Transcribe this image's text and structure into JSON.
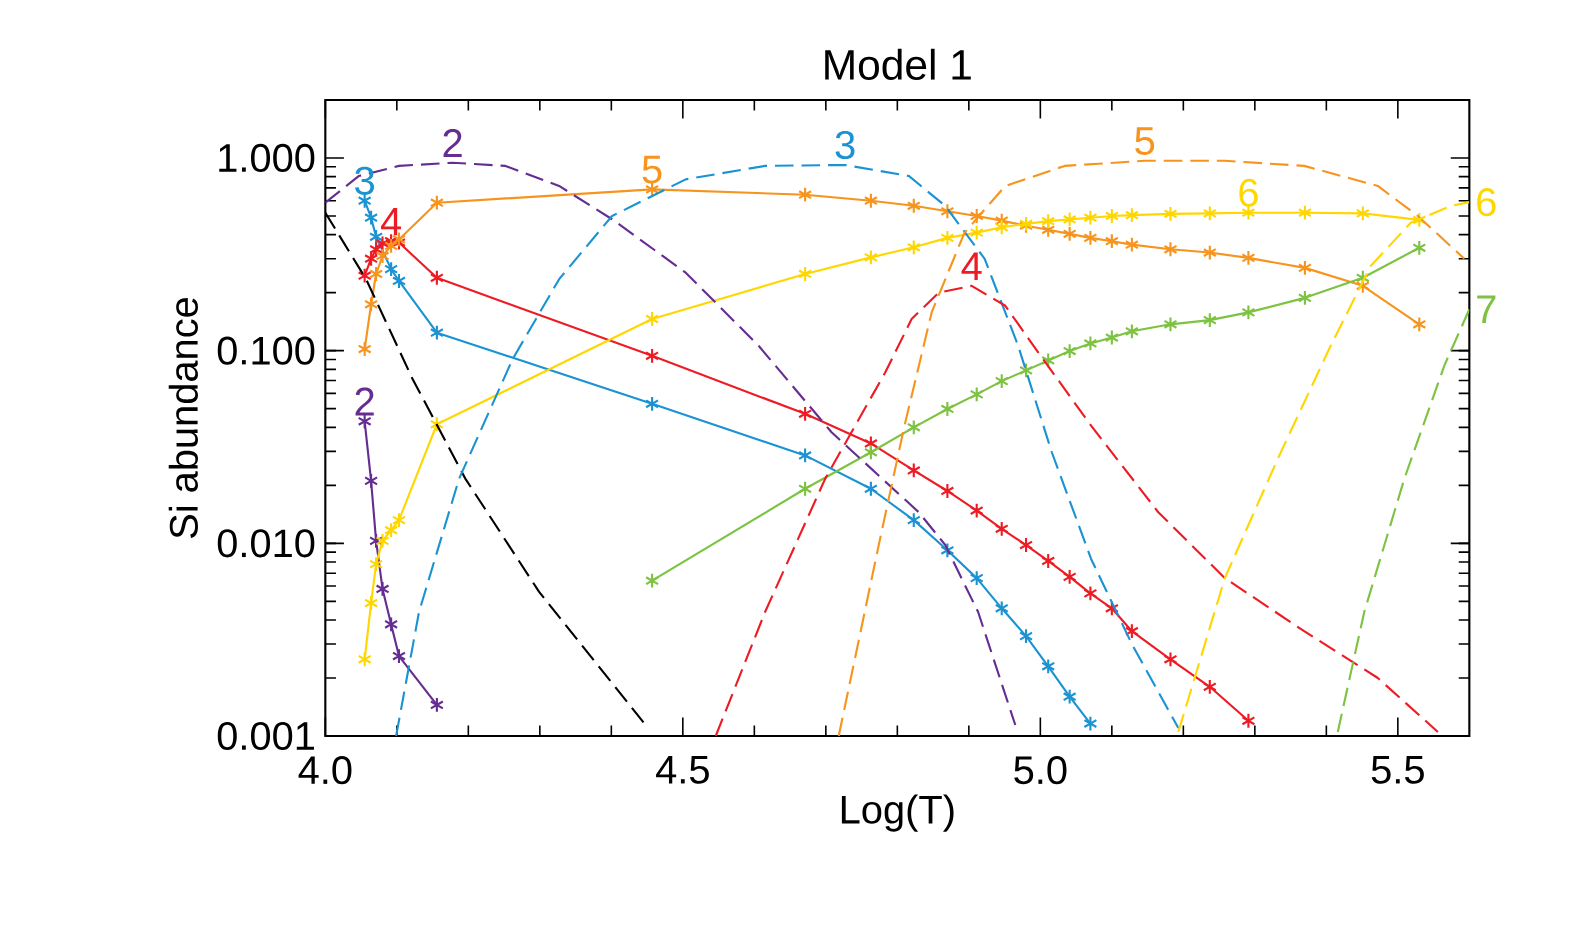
{
  "chart_data": {
    "type": "line",
    "title": "Model   1",
    "xlabel": "Log(T)",
    "ylabel": "Si abundance",
    "xlim": [
      4.0,
      5.6
    ],
    "ylim": [
      0.001,
      2
    ],
    "log": "y",
    "grid": false,
    "xticks": [
      {
        "value": 4.0,
        "label": "4.0"
      },
      {
        "value": 4.5,
        "label": "4.5"
      },
      {
        "value": 5.0,
        "label": "5.0"
      },
      {
        "value": 5.5,
        "label": "5.5"
      }
    ],
    "yticks": [
      {
        "value": 0.001,
        "label": "0.001"
      },
      {
        "value": 0.01,
        "label": "0.010"
      },
      {
        "value": 0.1,
        "label": "0.100"
      },
      {
        "value": 1,
        "label": "1.000"
      }
    ],
    "series": [
      {
        "name": "2",
        "color": "#662d91",
        "line_style": "solid",
        "marker": "cross",
        "x": [
          4.055,
          4.064,
          4.071,
          4.08,
          4.092,
          4.103,
          4.156
        ],
        "values": [
          0.043,
          0.0211,
          0.0103,
          0.0058,
          0.0038,
          0.0026,
          0.00145
        ]
      },
      {
        "name": "3",
        "color": "#1b93d3",
        "line_style": "solid",
        "marker": "cross",
        "x": [
          4.055,
          4.064,
          4.071,
          4.092,
          4.103,
          4.156,
          4.457,
          4.671,
          4.763,
          4.823,
          4.87,
          4.911,
          4.946,
          4.98,
          5.011,
          5.041,
          5.07
        ],
        "values": [
          0.6,
          0.49,
          0.39,
          0.265,
          0.23,
          0.124,
          0.053,
          0.0286,
          0.0192,
          0.0132,
          0.0092,
          0.0066,
          0.0046,
          0.0033,
          0.0023,
          0.0016,
          0.00116
        ]
      },
      {
        "name": "4",
        "color": "#ed1c24",
        "line_style": "solid",
        "marker": "cross",
        "x": [
          4.055,
          4.064,
          4.071,
          4.08,
          4.092,
          4.103,
          4.156,
          4.457,
          4.671,
          4.763,
          4.823,
          4.87,
          4.911,
          4.946,
          4.98,
          5.011,
          5.041,
          5.07,
          5.1,
          5.128,
          5.182,
          5.237,
          5.291
        ],
        "values": [
          0.245,
          0.3,
          0.336,
          0.36,
          0.37,
          0.364,
          0.239,
          0.094,
          0.047,
          0.033,
          0.0239,
          0.0187,
          0.0148,
          0.0119,
          0.0098,
          0.0081,
          0.0067,
          0.0055,
          0.0046,
          0.0035,
          0.0025,
          0.0018,
          0.0012
        ]
      },
      {
        "name": "5",
        "color": "#f7941d",
        "line_style": "solid",
        "marker": "cross",
        "x": [
          4.055,
          4.064,
          4.071,
          4.08,
          4.092,
          4.103,
          4.156,
          4.457,
          4.671,
          4.763,
          4.823,
          4.87,
          4.911,
          4.946,
          4.98,
          5.011,
          5.041,
          5.07,
          5.1,
          5.128,
          5.182,
          5.237,
          5.291,
          5.37,
          5.451,
          5.53
        ],
        "values": [
          0.102,
          0.174,
          0.25,
          0.31,
          0.35,
          0.378,
          0.586,
          0.687,
          0.645,
          0.6,
          0.565,
          0.529,
          0.5,
          0.473,
          0.445,
          0.424,
          0.404,
          0.385,
          0.37,
          0.355,
          0.336,
          0.323,
          0.303,
          0.269,
          0.217,
          0.137
        ]
      },
      {
        "name": "6",
        "color": "#ffd700",
        "line_style": "solid",
        "marker": "cross",
        "x": [
          4.055,
          4.064,
          4.071,
          4.08,
          4.092,
          4.103,
          4.156,
          4.457,
          4.671,
          4.763,
          4.823,
          4.87,
          4.911,
          4.946,
          4.98,
          5.011,
          5.041,
          5.07,
          5.1,
          5.128,
          5.182,
          5.237,
          5.291,
          5.37,
          5.451,
          5.53
        ],
        "values": [
          0.0025,
          0.0049,
          0.0078,
          0.0103,
          0.0117,
          0.0132,
          0.0415,
          0.146,
          0.25,
          0.305,
          0.344,
          0.385,
          0.41,
          0.437,
          0.455,
          0.47,
          0.48,
          0.49,
          0.5,
          0.505,
          0.513,
          0.516,
          0.52,
          0.52,
          0.516,
          0.477
        ]
      },
      {
        "color": "#7dc241",
        "line_style": "solid",
        "marker": "cross",
        "x": [
          4.457,
          4.671,
          4.763,
          4.823,
          4.87,
          4.911,
          4.946,
          4.98,
          5.011,
          5.041,
          5.07,
          5.1,
          5.128,
          5.182,
          5.237,
          5.291,
          5.37,
          5.451,
          5.53
        ],
        "values": [
          0.0064,
          0.0192,
          0.0297,
          0.04,
          0.0498,
          0.0593,
          0.0695,
          0.079,
          0.089,
          0.0995,
          0.109,
          0.117,
          0.126,
          0.137,
          0.144,
          0.158,
          0.188,
          0.239,
          0.342
        ]
      },
      {
        "color": "#000000",
        "line_style": "dashed",
        "marker": "none",
        "x": [
          4.0,
          4.057,
          4.122,
          4.196,
          4.299,
          4.448
        ],
        "values": [
          0.52,
          0.235,
          0.0713,
          0.0216,
          0.0056,
          0.00114
        ]
      },
      {
        "name": "2",
        "color": "#662d91",
        "line_style": "dashed",
        "marker": "none",
        "x": [
          4.0,
          4.047,
          4.103,
          4.178,
          4.252,
          4.327,
          4.401,
          4.504,
          4.606,
          4.708,
          4.83,
          4.867,
          4.913,
          4.965
        ],
        "values": [
          0.586,
          0.807,
          0.91,
          0.945,
          0.91,
          0.716,
          0.481,
          0.254,
          0.106,
          0.0377,
          0.0145,
          0.0098,
          0.0044,
          0.00114
        ]
      },
      {
        "name": "3",
        "color": "#1b93d3",
        "line_style": "dashed",
        "marker": "none",
        "x": [
          4.099,
          4.131,
          4.187,
          4.262,
          4.327,
          4.401,
          4.504,
          4.615,
          4.727,
          4.816,
          4.867,
          4.922,
          4.969,
          5.016,
          5.071,
          5.128,
          5.193
        ],
        "values": [
          0.001,
          0.0044,
          0.0216,
          0.0905,
          0.235,
          0.5,
          0.775,
          0.91,
          0.92,
          0.807,
          0.564,
          0.3,
          0.106,
          0.0297,
          0.0083,
          0.003,
          0.0011
        ]
      },
      {
        "name": "4",
        "color": "#ed1c24",
        "line_style": "dashed",
        "marker": "none",
        "x": [
          4.546,
          4.615,
          4.699,
          4.783,
          4.82,
          4.858,
          4.904,
          4.951,
          4.997,
          5.071,
          5.165,
          5.258,
          5.369,
          5.472,
          5.556
        ],
        "values": [
          0.001,
          0.0044,
          0.0216,
          0.077,
          0.146,
          0.2,
          0.217,
          0.171,
          0.098,
          0.0408,
          0.0145,
          0.0066,
          0.0035,
          0.002,
          0.00105
        ]
      },
      {
        "name": "5",
        "color": "#f7941d",
        "line_style": "dashed",
        "marker": "none",
        "x": [
          4.718,
          4.774,
          4.81,
          4.848,
          4.894,
          4.951,
          5.034,
          5.146,
          5.258,
          5.369,
          5.472,
          5.528,
          5.593
        ],
        "values": [
          0.001,
          0.0098,
          0.0408,
          0.158,
          0.41,
          0.716,
          0.91,
          0.967,
          0.967,
          0.91,
          0.716,
          0.5,
          0.3
        ]
      },
      {
        "name": "6",
        "color": "#ffd700",
        "line_style": "dashed",
        "marker": "none",
        "x": [
          5.193,
          5.258,
          5.332,
          5.406,
          5.462,
          5.518,
          5.574,
          5.6
        ],
        "values": [
          0.00105,
          0.0066,
          0.0274,
          0.106,
          0.275,
          0.461,
          0.564,
          0.59
        ]
      },
      {
        "name": "7",
        "color": "#7dc241",
        "line_style": "dashed",
        "marker": "none",
        "x": [
          5.416,
          5.453,
          5.509,
          5.565,
          5.6
        ],
        "values": [
          0.00105,
          0.0044,
          0.0216,
          0.0836,
          0.164
        ]
      }
    ]
  }
}
